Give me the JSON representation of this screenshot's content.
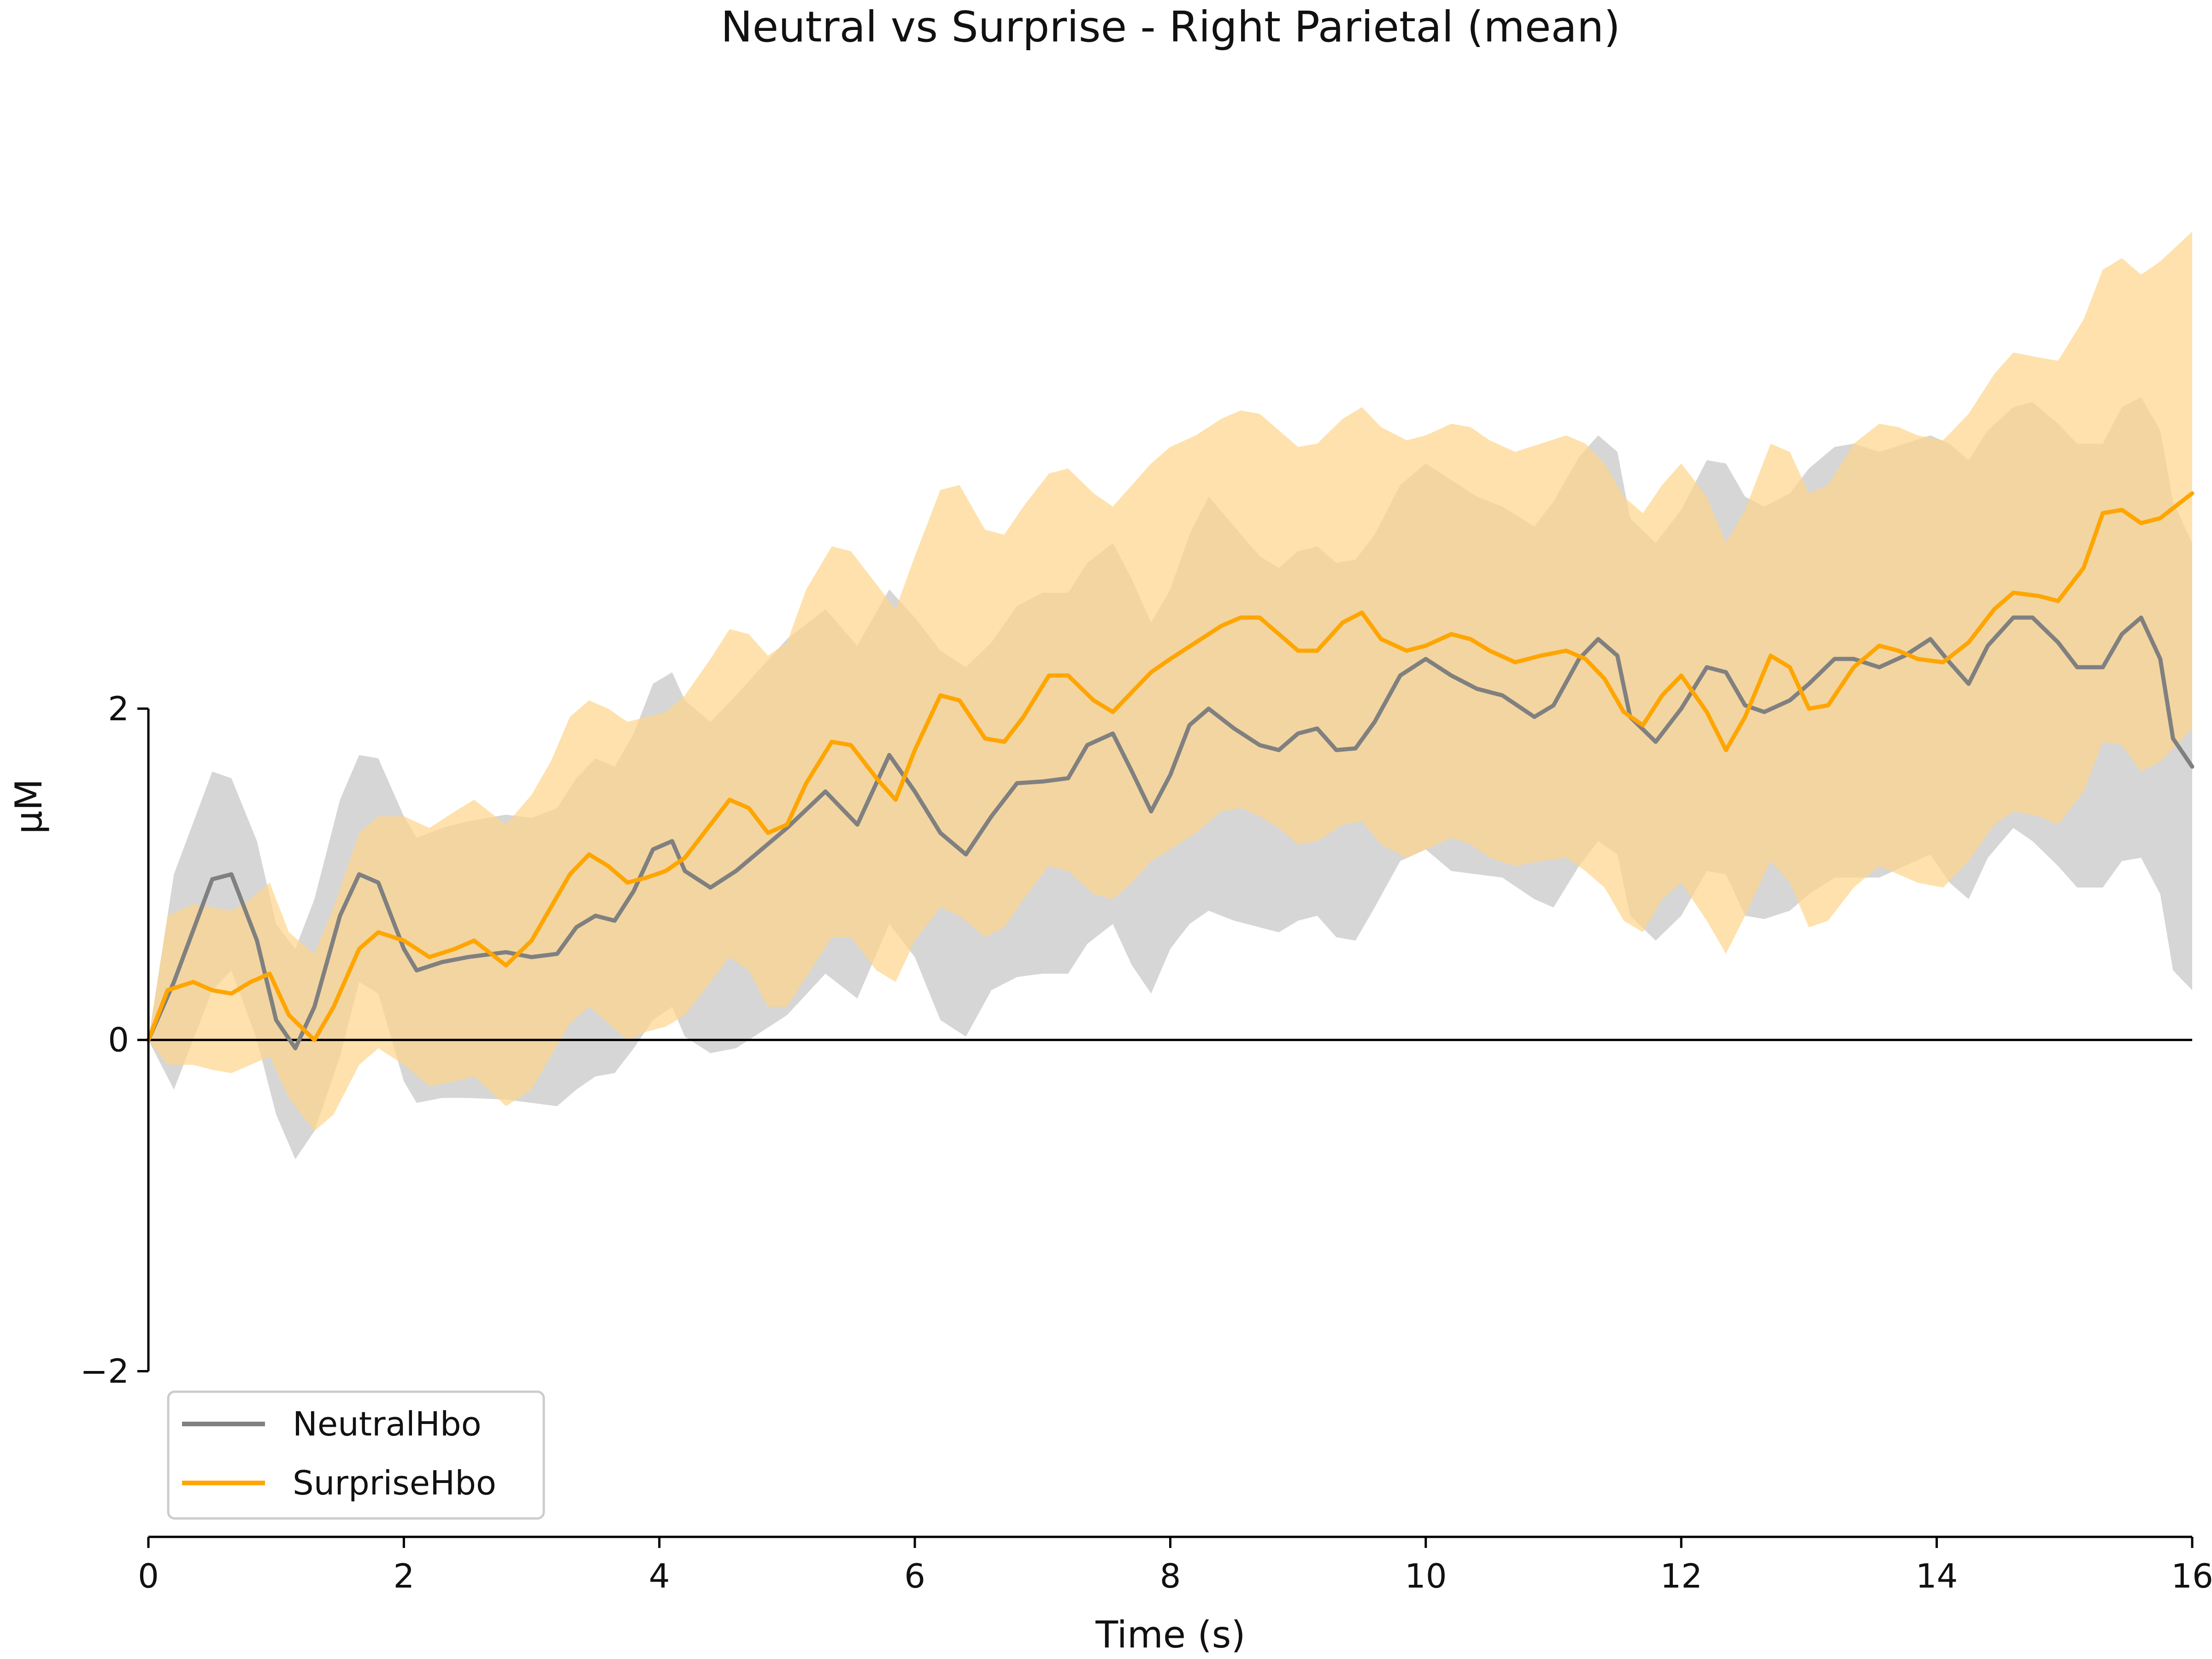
{
  "chart_data": {
    "type": "line",
    "title": "Neutral vs Surprise - Right Parietal (mean)",
    "xlabel": "Time (s)",
    "ylabel": "μM",
    "xlim": [
      0,
      16
    ],
    "ylim": [
      -3,
      6
    ],
    "x_ticks": [
      0,
      2,
      4,
      6,
      8,
      10,
      12,
      14,
      16
    ],
    "x_tick_labels": [
      "0",
      "2",
      "4",
      "6",
      "8",
      "10",
      "12",
      "14",
      "16"
    ],
    "y_ticks": [
      -2,
      0,
      2
    ],
    "y_tick_labels": [
      "−2",
      "0",
      "2"
    ],
    "zero_line": true,
    "grid": false,
    "legend_position": "lower-left",
    "series": [
      {
        "name": "NeutralHbo",
        "color": "#808080",
        "band_color": "#c8c8c8",
        "x": [
          0,
          0.2,
          0.5,
          0.65,
          0.85,
          1.0,
          1.15,
          1.3,
          1.5,
          1.65,
          1.8,
          2.0,
          2.1,
          2.3,
          2.5,
          2.8,
          3.0,
          3.2,
          3.35,
          3.5,
          3.65,
          3.8,
          3.95,
          4.1,
          4.2,
          4.4,
          4.6,
          4.8,
          5.0,
          5.3,
          5.55,
          5.8,
          6.0,
          6.2,
          6.4,
          6.6,
          6.8,
          7.0,
          7.2,
          7.35,
          7.55,
          7.7,
          7.85,
          8.0,
          8.15,
          8.3,
          8.5,
          8.7,
          8.85,
          9.0,
          9.15,
          9.3,
          9.45,
          9.6,
          9.8,
          10.0,
          10.2,
          10.4,
          10.6,
          10.85,
          11.0,
          11.2,
          11.35,
          11.5,
          11.6,
          11.8,
          12.0,
          12.2,
          12.35,
          12.5,
          12.65,
          12.85,
          13.0,
          13.2,
          13.35,
          13.55,
          13.75,
          13.95,
          14.1,
          14.25,
          14.4,
          14.6,
          14.75,
          14.95,
          15.1,
          15.3,
          15.45,
          15.6,
          15.75,
          15.85,
          16.0
        ],
        "mean": [
          0.0,
          0.35,
          0.97,
          1.0,
          0.6,
          0.12,
          -0.05,
          0.2,
          0.75,
          1.0,
          0.95,
          0.55,
          0.42,
          0.47,
          0.5,
          0.53,
          0.5,
          0.52,
          0.68,
          0.75,
          0.72,
          0.9,
          1.15,
          1.2,
          1.02,
          0.92,
          1.02,
          1.15,
          1.28,
          1.5,
          1.3,
          1.72,
          1.5,
          1.25,
          1.12,
          1.35,
          1.55,
          1.56,
          1.58,
          1.78,
          1.85,
          1.62,
          1.38,
          1.6,
          1.9,
          2.0,
          1.88,
          1.78,
          1.75,
          1.85,
          1.88,
          1.75,
          1.76,
          1.92,
          2.2,
          2.3,
          2.2,
          2.12,
          2.08,
          1.95,
          2.02,
          2.3,
          2.42,
          2.32,
          1.95,
          1.8,
          2.0,
          2.25,
          2.22,
          2.02,
          1.98,
          2.05,
          2.15,
          2.3,
          2.3,
          2.25,
          2.32,
          2.42,
          2.28,
          2.15,
          2.38,
          2.55,
          2.55,
          2.4,
          2.25,
          2.25,
          2.45,
          2.55,
          2.3,
          1.82,
          1.65
        ],
        "lower": [
          0.0,
          -0.3,
          0.3,
          0.42,
          0.0,
          -0.45,
          -0.72,
          -0.55,
          -0.1,
          0.35,
          0.28,
          -0.25,
          -0.38,
          -0.35,
          -0.35,
          -0.36,
          -0.38,
          -0.4,
          -0.3,
          -0.22,
          -0.2,
          -0.05,
          0.12,
          0.2,
          0.02,
          -0.08,
          -0.05,
          0.05,
          0.15,
          0.4,
          0.25,
          0.7,
          0.5,
          0.12,
          0.02,
          0.3,
          0.38,
          0.4,
          0.4,
          0.58,
          0.7,
          0.45,
          0.28,
          0.55,
          0.7,
          0.78,
          0.72,
          0.68,
          0.65,
          0.72,
          0.75,
          0.62,
          0.6,
          0.8,
          1.08,
          1.15,
          1.02,
          1.0,
          0.98,
          0.85,
          0.8,
          1.05,
          1.2,
          1.12,
          0.75,
          0.6,
          0.75,
          1.02,
          1.0,
          0.75,
          0.73,
          0.78,
          0.88,
          0.98,
          0.98,
          0.98,
          1.05,
          1.12,
          0.95,
          0.85,
          1.1,
          1.28,
          1.2,
          1.05,
          0.92,
          0.92,
          1.08,
          1.1,
          0.88,
          0.42,
          0.3
        ],
        "upper": [
          0.0,
          1.0,
          1.62,
          1.58,
          1.2,
          0.7,
          0.55,
          0.85,
          1.45,
          1.72,
          1.7,
          1.35,
          1.22,
          1.28,
          1.32,
          1.36,
          1.34,
          1.4,
          1.58,
          1.7,
          1.65,
          1.85,
          2.15,
          2.22,
          2.05,
          1.92,
          2.08,
          2.25,
          2.42,
          2.6,
          2.38,
          2.72,
          2.55,
          2.35,
          2.25,
          2.4,
          2.62,
          2.7,
          2.7,
          2.88,
          3.0,
          2.78,
          2.52,
          2.72,
          3.05,
          3.28,
          3.1,
          2.92,
          2.85,
          2.95,
          2.98,
          2.88,
          2.9,
          3.05,
          3.35,
          3.48,
          3.38,
          3.28,
          3.22,
          3.1,
          3.25,
          3.52,
          3.65,
          3.55,
          3.15,
          3.0,
          3.2,
          3.5,
          3.48,
          3.28,
          3.22,
          3.3,
          3.45,
          3.58,
          3.6,
          3.55,
          3.6,
          3.65,
          3.6,
          3.5,
          3.68,
          3.82,
          3.85,
          3.72,
          3.6,
          3.6,
          3.82,
          3.88,
          3.68,
          3.25,
          3.0
        ]
      },
      {
        "name": "SurpriseHbo",
        "color": "#ffa500",
        "band_color": "#fdd48a",
        "x": [
          0,
          0.15,
          0.35,
          0.5,
          0.65,
          0.8,
          0.95,
          1.1,
          1.3,
          1.45,
          1.65,
          1.8,
          2.0,
          2.2,
          2.4,
          2.55,
          2.8,
          3.0,
          3.15,
          3.3,
          3.45,
          3.6,
          3.75,
          3.9,
          4.05,
          4.2,
          4.4,
          4.55,
          4.7,
          4.85,
          5.0,
          5.15,
          5.35,
          5.5,
          5.7,
          5.85,
          6.0,
          6.2,
          6.35,
          6.55,
          6.7,
          6.85,
          7.05,
          7.2,
          7.4,
          7.55,
          7.7,
          7.85,
          8.0,
          8.2,
          8.4,
          8.55,
          8.7,
          8.85,
          9.0,
          9.15,
          9.35,
          9.5,
          9.65,
          9.85,
          10.0,
          10.2,
          10.35,
          10.5,
          10.7,
          10.9,
          11.1,
          11.25,
          11.4,
          11.55,
          11.7,
          11.85,
          12.0,
          12.2,
          12.35,
          12.5,
          12.7,
          12.85,
          13.0,
          13.15,
          13.35,
          13.55,
          13.7,
          13.85,
          14.05,
          14.25,
          14.45,
          14.6,
          14.8,
          14.95,
          15.15,
          15.3,
          15.45,
          15.6,
          15.75,
          16.0
        ],
        "mean": [
          0.0,
          0.3,
          0.35,
          0.3,
          0.28,
          0.35,
          0.4,
          0.15,
          0.0,
          0.2,
          0.55,
          0.65,
          0.6,
          0.5,
          0.55,
          0.6,
          0.45,
          0.6,
          0.8,
          1.0,
          1.12,
          1.05,
          0.95,
          0.98,
          1.02,
          1.1,
          1.3,
          1.45,
          1.4,
          1.25,
          1.3,
          1.55,
          1.8,
          1.78,
          1.58,
          1.45,
          1.75,
          2.08,
          2.05,
          1.82,
          1.8,
          1.95,
          2.2,
          2.2,
          2.05,
          1.98,
          2.1,
          2.22,
          2.3,
          2.4,
          2.5,
          2.55,
          2.55,
          2.45,
          2.35,
          2.35,
          2.52,
          2.58,
          2.42,
          2.35,
          2.38,
          2.45,
          2.42,
          2.35,
          2.28,
          2.32,
          2.35,
          2.3,
          2.18,
          1.98,
          1.9,
          2.08,
          2.2,
          1.98,
          1.75,
          1.95,
          2.32,
          2.25,
          2.0,
          2.02,
          2.25,
          2.38,
          2.35,
          2.3,
          2.28,
          2.4,
          2.6,
          2.7,
          2.68,
          2.65,
          2.85,
          3.18,
          3.2,
          3.12,
          3.15,
          3.3
        ],
        "lower": [
          0.0,
          -0.15,
          -0.15,
          -0.18,
          -0.2,
          -0.15,
          -0.1,
          -0.35,
          -0.55,
          -0.45,
          -0.15,
          -0.05,
          -0.15,
          -0.28,
          -0.25,
          -0.22,
          -0.4,
          -0.3,
          -0.1,
          0.1,
          0.2,
          0.1,
          0.0,
          0.05,
          0.08,
          0.15,
          0.35,
          0.5,
          0.42,
          0.2,
          0.2,
          0.38,
          0.62,
          0.62,
          0.42,
          0.35,
          0.6,
          0.8,
          0.75,
          0.62,
          0.68,
          0.85,
          1.05,
          1.02,
          0.88,
          0.85,
          0.95,
          1.08,
          1.15,
          1.25,
          1.38,
          1.4,
          1.35,
          1.28,
          1.18,
          1.2,
          1.3,
          1.32,
          1.18,
          1.1,
          1.15,
          1.22,
          1.18,
          1.1,
          1.05,
          1.08,
          1.1,
          1.02,
          0.92,
          0.72,
          0.65,
          0.85,
          0.95,
          0.72,
          0.52,
          0.75,
          1.08,
          0.95,
          0.68,
          0.72,
          0.92,
          1.05,
          1.0,
          0.95,
          0.92,
          1.08,
          1.3,
          1.38,
          1.35,
          1.3,
          1.5,
          1.8,
          1.78,
          1.62,
          1.68,
          1.88
        ],
        "upper": [
          0.0,
          0.75,
          0.82,
          0.8,
          0.78,
          0.85,
          0.95,
          0.65,
          0.52,
          0.8,
          1.25,
          1.35,
          1.35,
          1.28,
          1.38,
          1.45,
          1.3,
          1.48,
          1.68,
          1.95,
          2.05,
          2.0,
          1.92,
          1.95,
          1.98,
          2.08,
          2.3,
          2.48,
          2.45,
          2.32,
          2.4,
          2.72,
          2.98,
          2.95,
          2.75,
          2.6,
          2.92,
          3.32,
          3.35,
          3.08,
          3.05,
          3.22,
          3.42,
          3.45,
          3.3,
          3.22,
          3.35,
          3.48,
          3.58,
          3.65,
          3.75,
          3.8,
          3.78,
          3.68,
          3.58,
          3.6,
          3.75,
          3.82,
          3.7,
          3.62,
          3.65,
          3.72,
          3.7,
          3.62,
          3.55,
          3.6,
          3.65,
          3.6,
          3.48,
          3.28,
          3.18,
          3.35,
          3.48,
          3.28,
          3.0,
          3.2,
          3.6,
          3.55,
          3.3,
          3.35,
          3.6,
          3.72,
          3.7,
          3.65,
          3.62,
          3.78,
          4.02,
          4.15,
          4.12,
          4.1,
          4.35,
          4.65,
          4.72,
          4.62,
          4.7,
          4.88
        ]
      }
    ]
  }
}
